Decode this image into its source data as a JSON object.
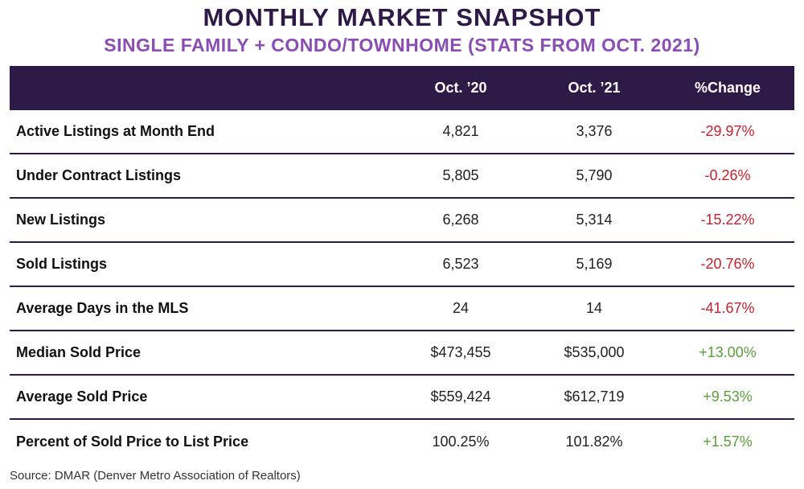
{
  "title": "MONTHLY MARKET SNAPSHOT",
  "subtitle": "SINGLE FAMILY + CONDO/TOWNHOME (STATS FROM OCT. 2021)",
  "source": "Source: DMAR (Denver Metro Association of Realtors)",
  "colors": {
    "header_bg": "#2e1a47",
    "negative": "#c8202e",
    "positive": "#5a9e3a",
    "subtitle": "#8a4db3"
  },
  "chart_data": {
    "type": "table",
    "title": "MONTHLY MARKET SNAPSHOT",
    "subtitle": "SINGLE FAMILY + CONDO/TOWNHOME (STATS FROM OCT. 2021)",
    "columns": [
      "",
      "Oct. ’20",
      "Oct. ’21",
      "%Change"
    ],
    "rows": [
      {
        "label": "Active Listings at Month End",
        "oct20": "4,821",
        "oct21": "3,376",
        "change": "-29.97%",
        "trend": "neg"
      },
      {
        "label": "Under Contract Listings",
        "oct20": "5,805",
        "oct21": "5,790",
        "change": "-0.26%",
        "trend": "neg"
      },
      {
        "label": "New Listings",
        "oct20": "6,268",
        "oct21": "5,314",
        "change": "-15.22%",
        "trend": "neg"
      },
      {
        "label": "Sold Listings",
        "oct20": "6,523",
        "oct21": "5,169",
        "change": "-20.76%",
        "trend": "neg"
      },
      {
        "label": "Average Days in the MLS",
        "oct20": "24",
        "oct21": "14",
        "change": "-41.67%",
        "trend": "neg"
      },
      {
        "label": "Median Sold Price",
        "oct20": "$473,455",
        "oct21": "$535,000",
        "change": "+13.00%",
        "trend": "pos"
      },
      {
        "label": "Average Sold Price",
        "oct20": "$559,424",
        "oct21": "$612,719",
        "change": "+9.53%",
        "trend": "pos"
      },
      {
        "label": "Percent of Sold Price to List Price",
        "oct20": "100.25%",
        "oct21": "101.82%",
        "change": "+1.57%",
        "trend": "pos"
      }
    ]
  }
}
